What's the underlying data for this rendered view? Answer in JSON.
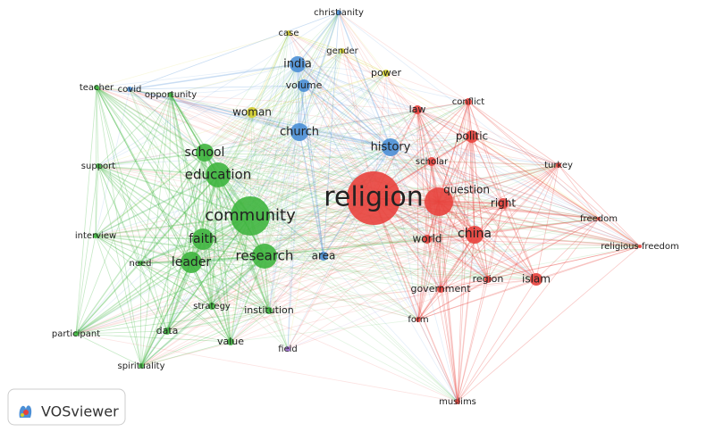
{
  "clusters": [
    {
      "color": "#e8413c"
    },
    {
      "color": "#3fb53f"
    },
    {
      "color": "#4b8fd6"
    },
    {
      "color": "#d4cf2b"
    },
    {
      "color": "#a36fd8"
    }
  ],
  "nodes": [
    {
      "label": "religion",
      "cluster": 0
    },
    {
      "label": "question",
      "cluster": 0
    },
    {
      "label": "china",
      "cluster": 0
    },
    {
      "label": "right",
      "cluster": 0
    },
    {
      "label": "politic",
      "cluster": 0
    },
    {
      "label": "law",
      "cluster": 0
    },
    {
      "label": "conflict",
      "cluster": 0
    },
    {
      "label": "scholar",
      "cluster": 0
    },
    {
      "label": "world",
      "cluster": 0
    },
    {
      "label": "government",
      "cluster": 0
    },
    {
      "label": "region",
      "cluster": 0
    },
    {
      "label": "islam",
      "cluster": 0
    },
    {
      "label": "form",
      "cluster": 0
    },
    {
      "label": "muslims",
      "cluster": 0
    },
    {
      "label": "turkey",
      "cluster": 0
    },
    {
      "label": "freedom",
      "cluster": 0
    },
    {
      "label": "religious freedom",
      "cluster": 0
    },
    {
      "label": "history",
      "cluster": 2
    },
    {
      "label": "church",
      "cluster": 2
    },
    {
      "label": "india",
      "cluster": 2
    },
    {
      "label": "volume",
      "cluster": 2
    },
    {
      "label": "christianity",
      "cluster": 2
    },
    {
      "label": "covid",
      "cluster": 2
    },
    {
      "label": "area",
      "cluster": 2
    },
    {
      "label": "case",
      "cluster": 3
    },
    {
      "label": "gender",
      "cluster": 3
    },
    {
      "label": "power",
      "cluster": 3
    },
    {
      "label": "woman",
      "cluster": 3
    },
    {
      "label": "community",
      "cluster": 1
    },
    {
      "label": "education",
      "cluster": 1
    },
    {
      "label": "school",
      "cluster": 1
    },
    {
      "label": "faith",
      "cluster": 1
    },
    {
      "label": "leader",
      "cluster": 1
    },
    {
      "label": "research",
      "cluster": 1
    },
    {
      "label": "teacher",
      "cluster": 1
    },
    {
      "label": "opportunity",
      "cluster": 1
    },
    {
      "label": "support",
      "cluster": 1
    },
    {
      "label": "interview",
      "cluster": 1
    },
    {
      "label": "need",
      "cluster": 1
    },
    {
      "label": "strategy",
      "cluster": 1
    },
    {
      "label": "institution",
      "cluster": 1
    },
    {
      "label": "data",
      "cluster": 1
    },
    {
      "label": "value",
      "cluster": 1
    },
    {
      "label": "participant",
      "cluster": 1
    },
    {
      "label": "spirituality",
      "cluster": 1
    },
    {
      "label": "field",
      "cluster": 4
    }
  ],
  "logo": {
    "text": "VOSviewer"
  }
}
